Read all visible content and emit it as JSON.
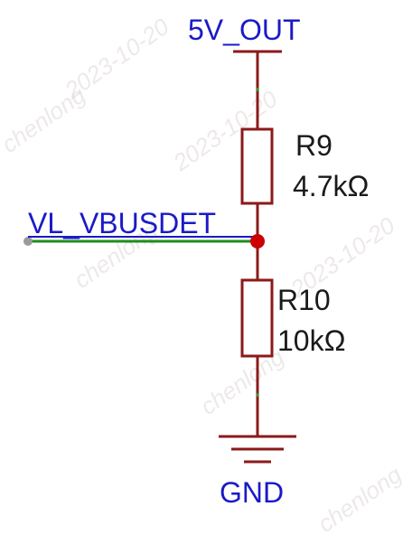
{
  "schematic": {
    "power_net": "5V_OUT",
    "signal_net": "VL_VBUSDET",
    "ground_net": "GND",
    "resistors": [
      {
        "ref": "R9",
        "value": "4.7kΩ"
      },
      {
        "ref": "R10",
        "value": "10kΩ"
      }
    ]
  },
  "watermark": [
    "2023-10-20",
    "chenlong"
  ],
  "colors": {
    "wire": "#8b1a1a",
    "signal_wire": "#1e8c1e",
    "net_label": "#1a1ac8",
    "junction": "#cc0000",
    "component_text": "#1a1a1a",
    "background": "#ffffff"
  }
}
